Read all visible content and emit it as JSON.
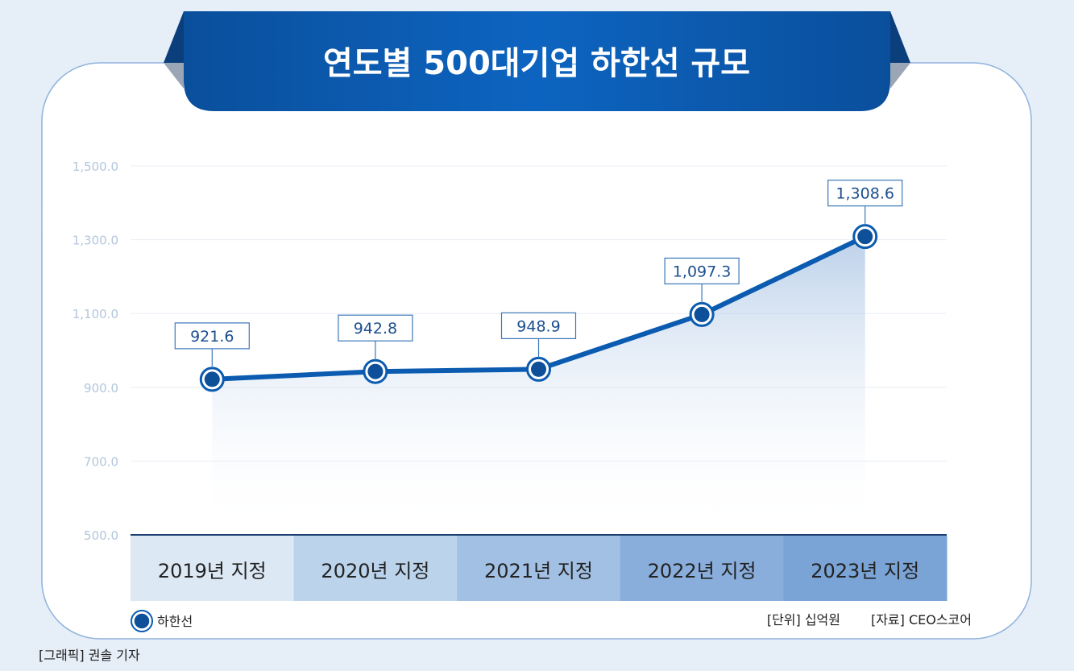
{
  "header": {
    "title": "연도별 500대기업 하한선 규모"
  },
  "legend": {
    "label": "하한선"
  },
  "footer": {
    "unit": "[단위] 십억원",
    "source": "[자료] CEO스코어",
    "credit": "[그래픽] 권솔 기자"
  },
  "colors": {
    "background": "#e6eef8",
    "banner": "#0b5db3",
    "banner_dark": "#0a4a8e",
    "line": "#0b5bb0",
    "marker_fill": "#0d4f99",
    "label_border": "#3a78b8",
    "grid": "#e8eef5",
    "category_fills": [
      "#dde8f5",
      "#bcd3ec",
      "#a2c0e4",
      "#89aedb",
      "#7aa3d6"
    ]
  },
  "chart_data": {
    "type": "line",
    "ylim": [
      500,
      1500
    ],
    "yticks": [
      500,
      700,
      900,
      1100,
      1300,
      1500
    ],
    "ytick_labels": [
      "500.0",
      "700.0",
      "900.0",
      "1,100.0",
      "1,300.0",
      "1,500.0"
    ],
    "categories": [
      "2019년 지정",
      "2020년 지정",
      "2021년 지정",
      "2022년 지정",
      "2023년 지정"
    ],
    "series": [
      {
        "name": "하한선",
        "values": [
          921.6,
          942.8,
          948.9,
          1097.3,
          1308.6
        ],
        "labels": [
          "921.6",
          "942.8",
          "948.9",
          "1,097.3",
          "1,308.6"
        ]
      }
    ]
  }
}
